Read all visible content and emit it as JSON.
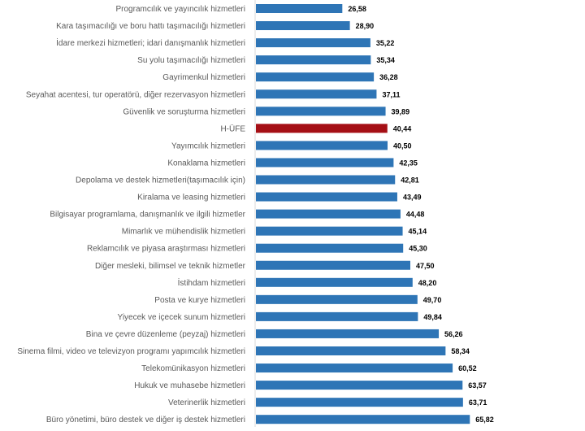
{
  "chart_data": {
    "type": "bar",
    "orientation": "horizontal",
    "title": "",
    "xlabel": "",
    "ylabel": "",
    "xlim": [
      0,
      100
    ],
    "grid": false,
    "legend": "none",
    "colors": {
      "default": "#2e75b6",
      "highlight": "#a50f15",
      "axis": "#d9d9d9"
    },
    "highlight_category": "H-ÜFE",
    "categories": [
      "Programcılık ve yayıncılık hizmetleri",
      "Kara taşımacılığı ve boru hattı taşımacılığı hizmetleri",
      "İdare merkezi hizmetleri; idari danışmanlık hizmetleri",
      "Su yolu taşımacılığı hizmetleri",
      "Gayrimenkul hizmetleri",
      "Seyahat acentesi, tur operatörü, diğer rezervasyon hizmetleri",
      "Güvenlik ve soruşturma hizmetleri",
      "H-ÜFE",
      "Yayımcılık hizmetleri",
      "Konaklama hizmetleri",
      "Depolama ve destek hizmetleri(taşımacılık için)",
      "Kiralama ve leasing hizmetleri",
      "Bilgisayar programlama, danışmanlık ve ilgili hizmetler",
      "Mimarlık ve mühendislik hizmetleri",
      "Reklamcılık ve piyasa araştırması hizmetleri",
      "Diğer mesleki, bilimsel ve teknik hizmetler",
      "İstihdam hizmetleri",
      "Posta ve kurye hizmetleri",
      "Yiyecek ve içecek sunum hizmetleri",
      "Bina ve çevre düzenleme (peyzaj) hizmetleri",
      "Sinema filmi, video ve televizyon programı yapımcılık hizmetleri",
      "Telekomünikasyon hizmetleri",
      "Hukuk ve muhasebe hizmetleri",
      "Veterinerlik hizmetleri",
      "Büro yönetimi, büro destek ve diğer iş destek hizmetleri"
    ],
    "values": [
      26.58,
      28.9,
      35.22,
      35.34,
      36.28,
      37.11,
      39.89,
      40.44,
      40.5,
      42.35,
      42.81,
      43.49,
      44.48,
      45.14,
      45.3,
      47.5,
      48.2,
      49.7,
      49.84,
      56.26,
      58.34,
      60.52,
      63.57,
      63.71,
      65.82
    ],
    "value_labels": [
      "26,58",
      "28,90",
      "35,22",
      "35,34",
      "36,28",
      "37,11",
      "39,89",
      "40,44",
      "40,50",
      "42,35",
      "42,81",
      "43,49",
      "44,48",
      "45,14",
      "45,30",
      "47,50",
      "48,20",
      "49,70",
      "49,84",
      "56,26",
      "58,34",
      "60,52",
      "63,57",
      "63,71",
      "65,82"
    ]
  }
}
